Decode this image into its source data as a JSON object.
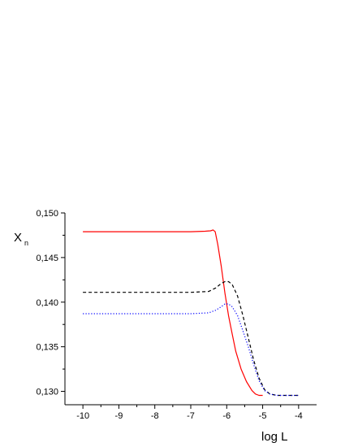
{
  "chart_data": {
    "type": "line",
    "title": "",
    "xlabel": "log L",
    "ylabel": "X",
    "ylabel_subscript": "n",
    "xlim": [
      -10.5,
      -3.5
    ],
    "ylim": [
      0.1285,
      0.15
    ],
    "xticks": [
      -10,
      -9,
      -8,
      -7,
      -6,
      -5,
      -4
    ],
    "xtick_labels": [
      "-10",
      "-9",
      "-8",
      "-7",
      "-6",
      "-5",
      "-4"
    ],
    "yticks": [
      0.13,
      0.135,
      0.14,
      0.145,
      0.15
    ],
    "ytick_labels": [
      "0,130",
      "0,135",
      "0,140",
      "0,145",
      "0,150"
    ],
    "grid": false,
    "legend": "none",
    "series": [
      {
        "color": "#ff0000",
        "style": "solid",
        "points": [
          [
            -10,
            0.1479
          ],
          [
            -9,
            0.1479
          ],
          [
            -8,
            0.1479
          ],
          [
            -7,
            0.1479
          ],
          [
            -6.6,
            0.14795
          ],
          [
            -6.45,
            0.148
          ],
          [
            -6.38,
            0.1481
          ],
          [
            -6.32,
            0.1479
          ],
          [
            -6.25,
            0.1465
          ],
          [
            -6.15,
            0.144
          ],
          [
            -6.05,
            0.141
          ],
          [
            -5.95,
            0.1385
          ],
          [
            -5.85,
            0.1365
          ],
          [
            -5.75,
            0.1345
          ],
          [
            -5.6,
            0.1325
          ],
          [
            -5.45,
            0.1311
          ],
          [
            -5.3,
            0.1301
          ],
          [
            -5.2,
            0.1297
          ],
          [
            -5.1,
            0.12955
          ],
          [
            -5.0,
            0.12955
          ]
        ]
      },
      {
        "color": "#000000",
        "style": "dashed",
        "points": [
          [
            -10,
            0.1411
          ],
          [
            -9,
            0.1411
          ],
          [
            -8,
            0.1411
          ],
          [
            -7,
            0.1411
          ],
          [
            -6.5,
            0.1412
          ],
          [
            -6.3,
            0.1416
          ],
          [
            -6.15,
            0.1421
          ],
          [
            -6.05,
            0.1423
          ],
          [
            -5.95,
            0.1423
          ],
          [
            -5.85,
            0.142
          ],
          [
            -5.7,
            0.1407
          ],
          [
            -5.55,
            0.1385
          ],
          [
            -5.4,
            0.136
          ],
          [
            -5.25,
            0.1335
          ],
          [
            -5.1,
            0.1315
          ],
          [
            -4.95,
            0.1302
          ],
          [
            -4.8,
            0.1297
          ],
          [
            -4.6,
            0.12955
          ],
          [
            -4.3,
            0.12955
          ],
          [
            -4,
            0.12955
          ]
        ]
      },
      {
        "color": "#0000ff",
        "style": "dotted",
        "points": [
          [
            -10,
            0.1387
          ],
          [
            -9,
            0.1387
          ],
          [
            -8,
            0.1387
          ],
          [
            -7,
            0.1387
          ],
          [
            -6.5,
            0.1388
          ],
          [
            -6.3,
            0.1391
          ],
          [
            -6.15,
            0.1395
          ],
          [
            -6.05,
            0.1398
          ],
          [
            -5.95,
            0.1398
          ],
          [
            -5.85,
            0.1395
          ],
          [
            -5.7,
            0.1385
          ],
          [
            -5.55,
            0.1368
          ],
          [
            -5.4,
            0.135
          ],
          [
            -5.25,
            0.133
          ],
          [
            -5.1,
            0.1312
          ],
          [
            -4.95,
            0.1301
          ],
          [
            -4.8,
            0.1297
          ],
          [
            -4.6,
            0.12955
          ],
          [
            -4.3,
            0.12955
          ],
          [
            -4,
            0.12955
          ]
        ]
      }
    ]
  }
}
